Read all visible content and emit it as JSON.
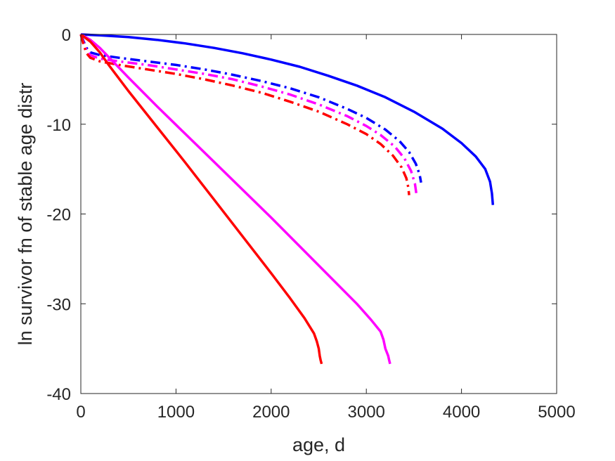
{
  "chart_data": {
    "type": "line",
    "title": "",
    "xlabel": "age, d",
    "ylabel": "ln survivor fn of stable age distr",
    "xlim": [
      0,
      5000
    ],
    "ylim": [
      -40,
      0
    ],
    "xticks": [
      0,
      1000,
      2000,
      3000,
      4000,
      5000
    ],
    "yticks": [
      0,
      -10,
      -20,
      -30,
      -40
    ],
    "xtick_labels": [
      "0",
      "1000",
      "2000",
      "3000",
      "4000",
      "5000"
    ],
    "ytick_labels": [
      "0",
      "-10",
      "-20",
      "-30",
      "-40"
    ],
    "grid": false,
    "legend": "none",
    "series": [
      {
        "color": "#0000ff",
        "style": "solid",
        "x": [
          0,
          200,
          500,
          800,
          1100,
          1400,
          1700,
          2000,
          2300,
          2600,
          2900,
          3200,
          3500,
          3800,
          4000,
          4150,
          4250,
          4300,
          4320,
          4330
        ],
        "y": [
          0,
          -0.1,
          -0.3,
          -0.6,
          -1.0,
          -1.5,
          -2.1,
          -2.8,
          -3.6,
          -4.6,
          -5.7,
          -7.0,
          -8.6,
          -10.5,
          -12.1,
          -13.6,
          -15.0,
          -16.4,
          -17.7,
          -19.0
        ]
      },
      {
        "color": "#0000ff",
        "style": "dashdot",
        "x": [
          0,
          30,
          60,
          100,
          200,
          400,
          700,
          1000,
          1300,
          1600,
          1900,
          2200,
          2500,
          2800,
          3000,
          3200,
          3350,
          3450,
          3520,
          3560,
          3575
        ],
        "y": [
          0,
          -0.8,
          -1.5,
          -2.0,
          -2.3,
          -2.6,
          -3.0,
          -3.4,
          -3.9,
          -4.5,
          -5.2,
          -6.0,
          -7.0,
          -8.3,
          -9.3,
          -10.6,
          -11.9,
          -13.1,
          -14.4,
          -15.6,
          -16.5
        ]
      },
      {
        "color": "#ff00ff",
        "style": "dashdot",
        "x": [
          0,
          30,
          60,
          100,
          200,
          400,
          700,
          1000,
          1300,
          1600,
          1900,
          2200,
          2500,
          2800,
          3000,
          3150,
          3300,
          3400,
          3470,
          3510,
          3525
        ],
        "y": [
          0,
          -1.0,
          -1.8,
          -2.3,
          -2.7,
          -3.0,
          -3.4,
          -3.9,
          -4.4,
          -5.0,
          -5.8,
          -6.7,
          -7.8,
          -9.1,
          -10.2,
          -11.2,
          -12.5,
          -13.8,
          -15.2,
          -16.6,
          -17.7
        ]
      },
      {
        "color": "#ff0000",
        "style": "dashdot",
        "x": [
          0,
          30,
          60,
          100,
          200,
          400,
          700,
          1000,
          1300,
          1600,
          1900,
          2200,
          2500,
          2800,
          3000,
          3150,
          3280,
          3370,
          3420,
          3440,
          3450
        ],
        "y": [
          0,
          -1.2,
          -2.1,
          -2.6,
          -3.0,
          -3.4,
          -3.9,
          -4.4,
          -5.0,
          -5.7,
          -6.5,
          -7.5,
          -8.6,
          -10.0,
          -11.1,
          -12.2,
          -13.5,
          -14.8,
          -16.0,
          -17.0,
          -17.9
        ]
      },
      {
        "color": "#ff00ff",
        "style": "solid",
        "x": [
          0,
          100,
          200,
          300,
          500,
          800,
          1100,
          1400,
          1700,
          2000,
          2300,
          2600,
          2900,
          3050,
          3150,
          3180,
          3200,
          3230,
          3240,
          3250
        ],
        "y": [
          0,
          -0.6,
          -1.5,
          -2.6,
          -4.8,
          -8.0,
          -11.1,
          -14.2,
          -17.3,
          -20.4,
          -23.6,
          -26.8,
          -30.0,
          -31.8,
          -33.1,
          -34.0,
          -35.0,
          -35.8,
          -36.3,
          -36.7
        ]
      },
      {
        "color": "#ff0000",
        "style": "solid",
        "x": [
          0,
          100,
          200,
          300,
          500,
          800,
          1100,
          1400,
          1700,
          2000,
          2200,
          2350,
          2450,
          2480,
          2500,
          2510,
          2520,
          2530
        ],
        "y": [
          0,
          -0.8,
          -2.0,
          -3.5,
          -6.3,
          -10.3,
          -14.3,
          -18.4,
          -22.5,
          -26.6,
          -29.4,
          -31.6,
          -33.3,
          -34.2,
          -35.0,
          -35.8,
          -36.3,
          -36.7
        ]
      }
    ]
  }
}
